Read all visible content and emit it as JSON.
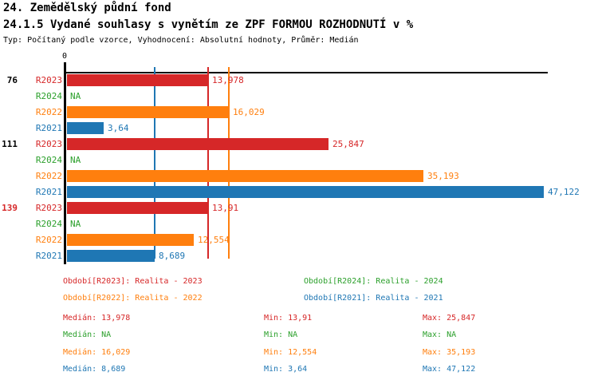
{
  "header": {
    "title": "24. Zemědělský půdní fond",
    "subtitle": "24.1.5 Vydané souhlasy s vynětím ze ZPF FORMOU ROZHODNUTÍ v %",
    "meta": "Typ: Počítaný podle vzorce, Vyhodnocení: Absolutní hodnoty, Průměr: Medián"
  },
  "chart_data": {
    "type": "bar",
    "orientation": "horizontal",
    "x_axis": {
      "zero_label": "0",
      "max": 47.122,
      "grid": false
    },
    "series": {
      "R2023": {
        "color": "#d62728",
        "period_label": "Období[R2023]: Realita - 2023"
      },
      "R2024": {
        "color": "#2ca02c",
        "period_label": "Období[R2024]: Realita - 2024"
      },
      "R2022": {
        "color": "#ff7f0e",
        "period_label": "Období[R2022]: Realita - 2022"
      },
      "R2021": {
        "color": "#1f77b4",
        "period_label": "Období[R2021]: Realita - 2021"
      }
    },
    "row_order": [
      "R2023",
      "R2024",
      "R2022",
      "R2021"
    ],
    "groups": [
      {
        "label": "76",
        "label_color": "#000000",
        "values": {
          "R2023": 13.978,
          "R2024": null,
          "R2022": 16.029,
          "R2021": 3.64
        },
        "display": {
          "R2023": "13,978",
          "R2024": "NA",
          "R2022": "16,029",
          "R2021": "3,64"
        }
      },
      {
        "label": "111",
        "label_color": "#000000",
        "values": {
          "R2023": 25.847,
          "R2024": null,
          "R2022": 35.193,
          "R2021": 47.122
        },
        "display": {
          "R2023": "25,847",
          "R2024": "NA",
          "R2022": "35,193",
          "R2021": "47,122"
        }
      },
      {
        "label": "139",
        "label_color": "#d62728",
        "values": {
          "R2023": 13.91,
          "R2024": null,
          "R2022": 12.554,
          "R2021": 8.689
        },
        "display": {
          "R2023": "13,91",
          "R2024": "NA",
          "R2022": "12,554",
          "R2021": "8,689"
        }
      }
    ],
    "median_lines": [
      {
        "series": "R2023",
        "value": 13.978
      },
      {
        "series": "R2022",
        "value": 16.029
      },
      {
        "series": "R2021",
        "value": 8.689
      }
    ],
    "legend_order": [
      "R2023",
      "R2024",
      "R2022",
      "R2021"
    ],
    "stats": [
      {
        "series": "R2023",
        "median": "Medián: 13,978",
        "min": "Min: 13,91",
        "max": "Max: 25,847"
      },
      {
        "series": "R2024",
        "median": "Medián: NA",
        "min": "Min: NA",
        "max": "Max: NA"
      },
      {
        "series": "R2022",
        "median": "Medián: 16,029",
        "min": "Min: 12,554",
        "max": "Max: 35,193"
      },
      {
        "series": "R2021",
        "median": "Medián: 8,689",
        "min": "Min: 3,64",
        "max": "Max: 47,122"
      }
    ]
  }
}
